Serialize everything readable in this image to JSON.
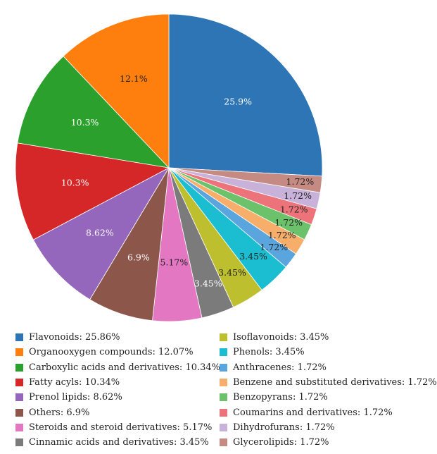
{
  "chart_data": {
    "type": "pie",
    "slices": [
      {
        "legend": "Flavonoids: 25.86%",
        "label": "25.9%",
        "value": 25.86,
        "color": "#2e75b6",
        "label_color": "#ffffff"
      },
      {
        "legend": "Glycerolipids: 1.72%",
        "label": "1.72%",
        "value": 1.72,
        "color": "#c58b82",
        "label_color": "#222222"
      },
      {
        "legend": "Dihydrofurans: 1.72%",
        "label": "1.72%",
        "value": 1.72,
        "color": "#c8b2d9",
        "label_color": "#222222"
      },
      {
        "legend": "Coumarins and derivatives: 1.72%",
        "label": "1.72%",
        "value": 1.72,
        "color": "#eb7379",
        "label_color": "#222222"
      },
      {
        "legend": "Benzopyrans: 1.72%",
        "label": "1.72%",
        "value": 1.72,
        "color": "#6cc26a",
        "label_color": "#222222"
      },
      {
        "legend": "Benzene and substituted derivatives: 1.72%",
        "label": "1.72%",
        "value": 1.72,
        "color": "#f7ae6a",
        "label_color": "#222222"
      },
      {
        "legend": "Anthracenes: 1.72%",
        "label": "1.72%",
        "value": 1.72,
        "color": "#5aa5dd",
        "label_color": "#222222"
      },
      {
        "legend": "Phenols: 3.45%",
        "label": "3.45%",
        "value": 3.45,
        "color": "#1bbed1",
        "label_color": "#222222"
      },
      {
        "legend": "Isoflavonoids: 3.45%",
        "label": "3.45%",
        "value": 3.45,
        "color": "#bdbf2f",
        "label_color": "#222222"
      },
      {
        "legend": "Cinnamic acids and derivatives: 3.45%",
        "label": "3.45%",
        "value": 3.45,
        "color": "#7b7b7b",
        "label_color": "#ffffff"
      },
      {
        "legend": "Steroids and steroid derivatives: 5.17%",
        "label": "5.17%",
        "value": 5.17,
        "color": "#e377c2",
        "label_color": "#222222"
      },
      {
        "legend": "Others: 6.9%",
        "label": "6.9%",
        "value": 6.9,
        "color": "#8c564b",
        "label_color": "#ffffff"
      },
      {
        "legend": "Prenol lipids: 8.62%",
        "label": "8.62%",
        "value": 8.62,
        "color": "#9467bd",
        "label_color": "#ffffff"
      },
      {
        "legend": "Fatty acyls: 10.34%",
        "label": "10.3%",
        "value": 10.34,
        "color": "#d62728",
        "label_color": "#ffffff"
      },
      {
        "legend": "Carboxylic acids and derivatives: 10.34%",
        "label": "10.3%",
        "value": 10.34,
        "color": "#2ca02c",
        "label_color": "#ffffff"
      },
      {
        "legend": "Organooxygen compounds: 12.07%",
        "label": "12.1%",
        "value": 12.07,
        "color": "#ff7f0e",
        "label_color": "#222222"
      }
    ],
    "legend_left": [
      {
        "label": "Flavonoids: 25.86%",
        "color": "#2e75b6"
      },
      {
        "label": "Organooxygen compounds: 12.07%",
        "color": "#ff7f0e"
      },
      {
        "label": "Carboxylic acids and derivatives: 10.34%",
        "color": "#2ca02c"
      },
      {
        "label": "Fatty acyls: 10.34%",
        "color": "#d62728"
      },
      {
        "label": "Prenol lipids: 8.62%",
        "color": "#9467bd"
      },
      {
        "label": "Others: 6.9%",
        "color": "#8c564b"
      },
      {
        "label": "Steroids and steroid derivatives: 5.17%",
        "color": "#e377c2"
      },
      {
        "label": "Cinnamic acids and derivatives: 3.45%",
        "color": "#7b7b7b"
      }
    ],
    "legend_right": [
      {
        "label": "Isoflavonoids: 3.45%",
        "color": "#bdbf2f"
      },
      {
        "label": "Phenols: 3.45%",
        "color": "#1bbed1"
      },
      {
        "label": "Anthracenes: 1.72%",
        "color": "#5aa5dd"
      },
      {
        "label": "Benzene and substituted derivatives: 1.72%",
        "color": "#f7ae6a"
      },
      {
        "label": "Benzopyrans: 1.72%",
        "color": "#6cc26a"
      },
      {
        "label": "Coumarins and derivatives: 1.72%",
        "color": "#eb7379"
      },
      {
        "label": "Dihydrofurans: 1.72%",
        "color": "#c8b2d9"
      },
      {
        "label": "Glycerolipids: 1.72%",
        "color": "#c58b82"
      }
    ],
    "legend_placement": "bottom",
    "start_angle": "12 o'clock",
    "direction": "clockwise"
  }
}
